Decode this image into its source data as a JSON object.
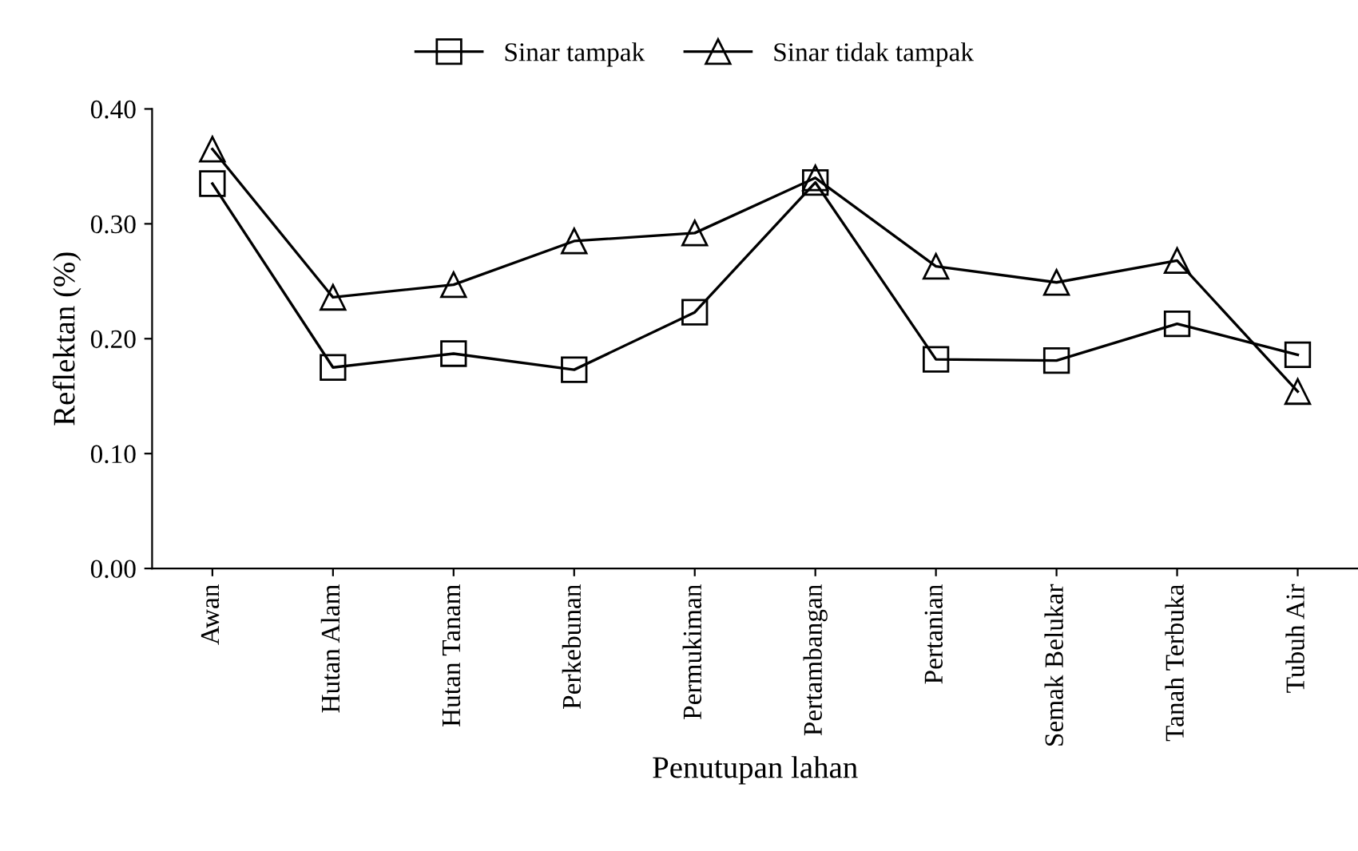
{
  "chart_data": {
    "type": "line",
    "xlabel": "Penutupan lahan",
    "ylabel": "Reflektan (%)",
    "categories": [
      "Awan",
      "Hutan Alam",
      "Hutan Tanam",
      "Perkebunan",
      "Permukiman",
      "Pertambangan",
      "Pertanian",
      "Semak Belukar",
      "Tanah Terbuka",
      "Tubuh Air"
    ],
    "series": [
      {
        "name": "Sinar tampak",
        "color": "#000000",
        "marker": "square",
        "values": [
          0.335,
          0.175,
          0.187,
          0.173,
          0.223,
          0.336,
          0.182,
          0.181,
          0.213,
          0.186
        ]
      },
      {
        "name": "Sinar tidak tampak",
        "color": "#000000",
        "marker": "triangle",
        "values": [
          0.365,
          0.236,
          0.247,
          0.285,
          0.292,
          0.34,
          0.263,
          0.249,
          0.268,
          0.154
        ]
      }
    ],
    "ylim": [
      0,
      0.4
    ],
    "yticks": [
      {
        "value": 0,
        "label": "0.00"
      },
      {
        "value": 0.1,
        "label": "0.10"
      },
      {
        "value": 0.2,
        "label": "0.20"
      },
      {
        "value": 0.3,
        "label": "0.30"
      },
      {
        "value": 0.4,
        "label": "0.40"
      }
    ],
    "grid": false,
    "legend": "top",
    "line_style": "solid"
  }
}
